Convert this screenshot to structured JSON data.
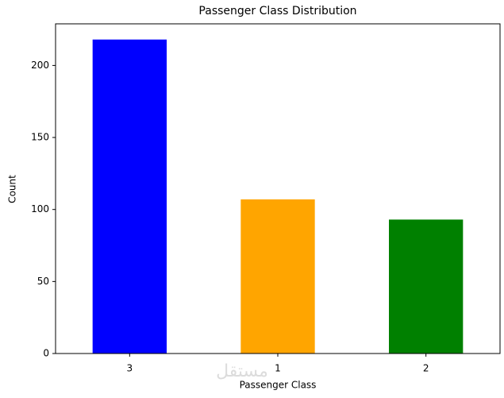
{
  "chart_data": {
    "type": "bar",
    "title": "Passenger Class Distribution",
    "x_label": "Passenger Class",
    "y_label": "Count",
    "categories": [
      "3",
      "1",
      "2"
    ],
    "values": [
      218,
      107,
      93
    ],
    "colors": [
      "#0000ff",
      "#ffa500",
      "#008000"
    ],
    "ylim": [
      0,
      228.9
    ],
    "yticks": [
      0,
      50,
      100,
      150,
      200
    ],
    "grid": false,
    "watermark": "مستقل"
  }
}
